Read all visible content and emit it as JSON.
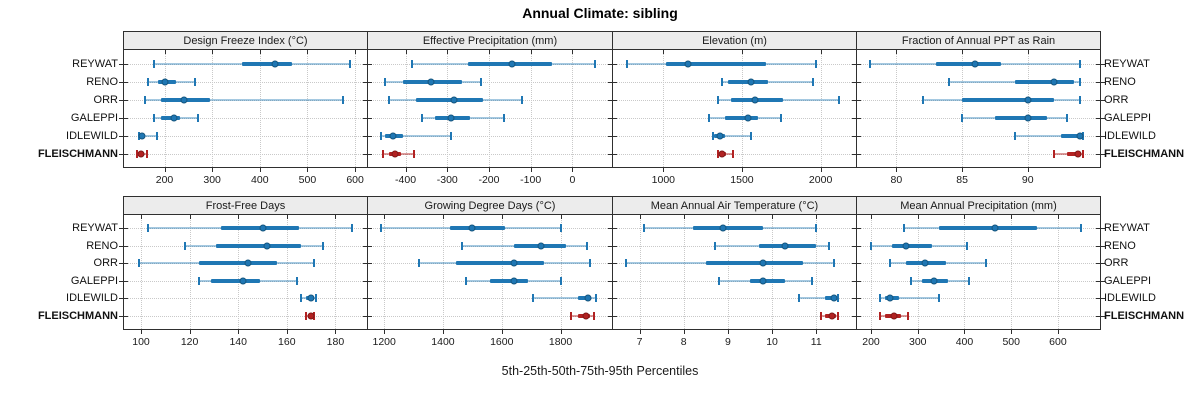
{
  "title": "Annual Climate: sibling",
  "caption": "5th-25th-50th-75th-95th Percentiles",
  "sites": [
    "REYWAT",
    "RENO",
    "ORR",
    "GALEPPI",
    "IDLEWILD",
    "FLEISCHMANN"
  ],
  "highlight_site": "FLEISCHMANN",
  "colors": {
    "series_blue": "#1F77B4",
    "series_blue_light": "rgba(31,119,180,0.40)",
    "series_blue_edge": "#15557E",
    "highlight_red": "#B22222",
    "highlight_red_light": "rgba(178,34,34,0.45)",
    "highlight_red_edge": "#7E1818",
    "strip_background": "#ECECEC",
    "panel_border": "#2F2F2F",
    "gridline": "#C9C9C9"
  },
  "chart_data": [
    {
      "type": "dotplot-interval",
      "title": "Design Freeze Index (°C)",
      "row": 0,
      "col": 0,
      "percentile_labels": [
        "5th",
        "25th",
        "50th",
        "75th",
        "95th"
      ],
      "xlim": [
        115,
        625
      ],
      "ticks": [
        {
          "label": "200",
          "value": 200
        },
        {
          "label": "300",
          "value": 300
        },
        {
          "label": "400",
          "value": 400
        },
        {
          "label": "500",
          "value": 500
        },
        {
          "label": "600",
          "value": 600
        }
      ],
      "series": [
        {
          "name": "REYWAT",
          "values": [
            178,
            363,
            432,
            468,
            590
          ]
        },
        {
          "name": "RENO",
          "values": [
            165,
            186,
            201,
            224,
            264
          ]
        },
        {
          "name": "ORR",
          "values": [
            160,
            192,
            241,
            295,
            575
          ]
        },
        {
          "name": "GALEPPI",
          "values": [
            178,
            192,
            220,
            233,
            270
          ]
        },
        {
          "name": "IDLEWILD",
          "values": [
            146,
            149,
            153,
            160,
            184
          ]
        },
        {
          "name": "FLEISCHMANN",
          "values": [
            143,
            146,
            150,
            155,
            164
          ]
        }
      ]
    },
    {
      "type": "dotplot-interval",
      "title": "Effective Precipitation (mm)",
      "row": 0,
      "col": 1,
      "percentile_labels": [
        "5th",
        "25th",
        "50th",
        "75th",
        "95th"
      ],
      "xlim": [
        -490,
        95
      ],
      "ticks": [
        {
          "label": "-400",
          "value": -400
        },
        {
          "label": "-300",
          "value": -300
        },
        {
          "label": "-200",
          "value": -200
        },
        {
          "label": "-100",
          "value": -100
        },
        {
          "label": "0",
          "value": 0
        }
      ],
      "series": [
        {
          "name": "REYWAT",
          "values": [
            -385,
            -250,
            -145,
            -50,
            55
          ]
        },
        {
          "name": "RENO",
          "values": [
            -450,
            -405,
            -340,
            -265,
            -220
          ]
        },
        {
          "name": "ORR",
          "values": [
            -440,
            -375,
            -285,
            -215,
            -120
          ]
        },
        {
          "name": "GALEPPI",
          "values": [
            -360,
            -330,
            -290,
            -245,
            -165
          ]
        },
        {
          "name": "IDLEWILD",
          "values": [
            -460,
            -450,
            -430,
            -405,
            -290
          ]
        },
        {
          "name": "FLEISCHMANN",
          "values": [
            -455,
            -440,
            -425,
            -410,
            -380
          ]
        }
      ]
    },
    {
      "type": "dotplot-interval",
      "title": "Elevation (m)",
      "row": 0,
      "col": 2,
      "percentile_labels": [
        "5th",
        "25th",
        "50th",
        "75th",
        "95th"
      ],
      "xlim": [
        680,
        2225
      ],
      "ticks": [
        {
          "label": "1000",
          "value": 1000
        },
        {
          "label": "1500",
          "value": 1500
        },
        {
          "label": "2000",
          "value": 2000
        }
      ],
      "series": [
        {
          "name": "REYWAT",
          "values": [
            770,
            1015,
            1160,
            1650,
            1970
          ]
        },
        {
          "name": "RENO",
          "values": [
            1375,
            1410,
            1560,
            1665,
            1950
          ]
        },
        {
          "name": "ORR",
          "values": [
            1345,
            1430,
            1580,
            1760,
            2115
          ]
        },
        {
          "name": "GALEPPI",
          "values": [
            1290,
            1390,
            1540,
            1605,
            1745
          ]
        },
        {
          "name": "IDLEWILD",
          "values": [
            1315,
            1325,
            1360,
            1390,
            1560
          ]
        },
        {
          "name": "FLEISCHMANN",
          "values": [
            1350,
            1360,
            1375,
            1400,
            1440
          ]
        }
      ]
    },
    {
      "type": "dotplot-interval",
      "title": "Fraction of Annual PPT as Rain",
      "row": 0,
      "col": 3,
      "percentile_labels": [
        "5th",
        "25th",
        "50th",
        "75th",
        "95th"
      ],
      "xlim": [
        77,
        95.5
      ],
      "ticks": [
        {
          "label": "80",
          "value": 80
        },
        {
          "label": "85",
          "value": 85
        },
        {
          "label": "90",
          "value": 90
        }
      ],
      "series": [
        {
          "name": "REYWAT",
          "values": [
            78,
            83,
            86,
            88,
            94
          ]
        },
        {
          "name": "RENO",
          "values": [
            84,
            89,
            92,
            93.5,
            94
          ]
        },
        {
          "name": "ORR",
          "values": [
            82,
            85,
            90,
            92,
            94
          ]
        },
        {
          "name": "GALEPPI",
          "values": [
            85,
            87.5,
            90,
            91.5,
            93
          ]
        },
        {
          "name": "IDLEWILD",
          "values": [
            89,
            92.5,
            94,
            94,
            94.2
          ]
        },
        {
          "name": "FLEISCHMANN",
          "values": [
            92,
            93,
            93.8,
            94,
            94.2
          ]
        }
      ]
    },
    {
      "type": "dotplot-interval",
      "title": "Frost-Free Days",
      "row": 1,
      "col": 0,
      "percentile_labels": [
        "5th",
        "25th",
        "50th",
        "75th",
        "95th"
      ],
      "xlim": [
        93,
        193
      ],
      "ticks": [
        {
          "label": "100",
          "value": 100
        },
        {
          "label": "120",
          "value": 120
        },
        {
          "label": "140",
          "value": 140
        },
        {
          "label": "160",
          "value": 160
        },
        {
          "label": "180",
          "value": 180
        }
      ],
      "series": [
        {
          "name": "REYWAT",
          "values": [
            103,
            133,
            150,
            165,
            187
          ]
        },
        {
          "name": "RENO",
          "values": [
            118,
            131,
            152,
            166,
            175
          ]
        },
        {
          "name": "ORR",
          "values": [
            99,
            124,
            144,
            156,
            171
          ]
        },
        {
          "name": "GALEPPI",
          "values": [
            124,
            129,
            142,
            149,
            164
          ]
        },
        {
          "name": "IDLEWILD",
          "values": [
            166,
            168,
            170,
            171,
            172
          ]
        },
        {
          "name": "FLEISCHMANN",
          "values": [
            168,
            169,
            170,
            170.5,
            171
          ]
        }
      ]
    },
    {
      "type": "dotplot-interval",
      "title": "Growing Degree Days (°C)",
      "row": 1,
      "col": 1,
      "percentile_labels": [
        "5th",
        "25th",
        "50th",
        "75th",
        "95th"
      ],
      "xlim": [
        1145,
        1975
      ],
      "ticks": [
        {
          "label": "1200",
          "value": 1200
        },
        {
          "label": "1400",
          "value": 1400
        },
        {
          "label": "1600",
          "value": 1600
        },
        {
          "label": "1800",
          "value": 1800
        }
      ],
      "series": [
        {
          "name": "REYWAT",
          "values": [
            1190,
            1425,
            1500,
            1610,
            1800
          ]
        },
        {
          "name": "RENO",
          "values": [
            1465,
            1640,
            1735,
            1820,
            1890
          ]
        },
        {
          "name": "ORR",
          "values": [
            1320,
            1445,
            1640,
            1745,
            1900
          ]
        },
        {
          "name": "GALEPPI",
          "values": [
            1480,
            1560,
            1640,
            1690,
            1800
          ]
        },
        {
          "name": "IDLEWILD",
          "values": [
            1705,
            1860,
            1895,
            1905,
            1920
          ]
        },
        {
          "name": "FLEISCHMANN",
          "values": [
            1835,
            1860,
            1885,
            1900,
            1915
          ]
        }
      ]
    },
    {
      "type": "dotplot-interval",
      "title": "Mean Annual Air Temperature (°C)",
      "row": 1,
      "col": 2,
      "percentile_labels": [
        "5th",
        "25th",
        "50th",
        "75th",
        "95th"
      ],
      "xlim": [
        6.4,
        11.9
      ],
      "ticks": [
        {
          "label": "7",
          "value": 7
        },
        {
          "label": "8",
          "value": 8
        },
        {
          "label": "9",
          "value": 9
        },
        {
          "label": "10",
          "value": 10
        },
        {
          "label": "11",
          "value": 11
        }
      ],
      "series": [
        {
          "name": "REYWAT",
          "values": [
            7.1,
            8.2,
            8.9,
            9.8,
            11.0
          ]
        },
        {
          "name": "RENO",
          "values": [
            8.7,
            9.7,
            10.3,
            11.0,
            11.3
          ]
        },
        {
          "name": "ORR",
          "values": [
            6.7,
            8.5,
            9.8,
            10.7,
            11.4
          ]
        },
        {
          "name": "GALEPPI",
          "values": [
            8.8,
            9.5,
            9.8,
            10.3,
            10.9
          ]
        },
        {
          "name": "IDLEWILD",
          "values": [
            10.6,
            11.2,
            11.4,
            11.45,
            11.5
          ]
        },
        {
          "name": "FLEISCHMANN",
          "values": [
            11.1,
            11.2,
            11.35,
            11.45,
            11.5
          ]
        }
      ]
    },
    {
      "type": "dotplot-interval",
      "title": "Mean Annual Precipitation (mm)",
      "row": 1,
      "col": 3,
      "percentile_labels": [
        "5th",
        "25th",
        "50th",
        "75th",
        "95th"
      ],
      "xlim": [
        170,
        690
      ],
      "ticks": [
        {
          "label": "200",
          "value": 200
        },
        {
          "label": "300",
          "value": 300
        },
        {
          "label": "400",
          "value": 400
        },
        {
          "label": "500",
          "value": 500
        },
        {
          "label": "600",
          "value": 600
        }
      ],
      "series": [
        {
          "name": "REYWAT",
          "values": [
            270,
            345,
            465,
            555,
            650
          ]
        },
        {
          "name": "RENO",
          "values": [
            200,
            245,
            275,
            330,
            405
          ]
        },
        {
          "name": "ORR",
          "values": [
            240,
            275,
            315,
            360,
            445
          ]
        },
        {
          "name": "GALEPPI",
          "values": [
            285,
            310,
            335,
            365,
            410
          ]
        },
        {
          "name": "IDLEWILD",
          "values": [
            220,
            230,
            240,
            260,
            345
          ]
        },
        {
          "name": "FLEISCHMANN",
          "values": [
            220,
            230,
            250,
            265,
            280
          ]
        }
      ]
    }
  ]
}
